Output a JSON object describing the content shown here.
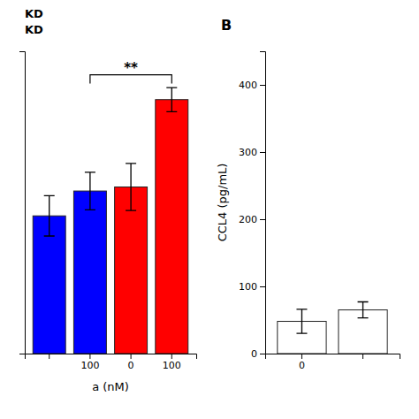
{
  "chart_data": [
    {
      "type": "bar",
      "categories": [
        null,
        "100",
        "0",
        "100"
      ],
      "values": [
        205,
        242,
        248,
        378
      ],
      "errors": [
        30,
        28,
        35,
        18
      ],
      "colors": [
        "#0000FF",
        "#0000FF",
        "#FF0000",
        "#FF0000"
      ],
      "x_label": "a (nM)",
      "ylim": [
        0,
        450
      ],
      "tick_labels": "x",
      "annotations": [
        {
          "text": "KD"
        },
        {
          "text": "KD"
        },
        {
          "text": "**",
          "between": [
            1,
            3
          ],
          "y": 415
        }
      ]
    },
    {
      "type": "bar",
      "title": "B",
      "categories": [
        "0",
        null
      ],
      "values": [
        48,
        65
      ],
      "errors": [
        18,
        12
      ],
      "color": "#FFFFFF",
      "y_label": "CCL4 (pg/mL)",
      "ylim": [
        0,
        450
      ],
      "yticks": [
        0,
        100,
        200,
        300,
        400
      ]
    }
  ]
}
